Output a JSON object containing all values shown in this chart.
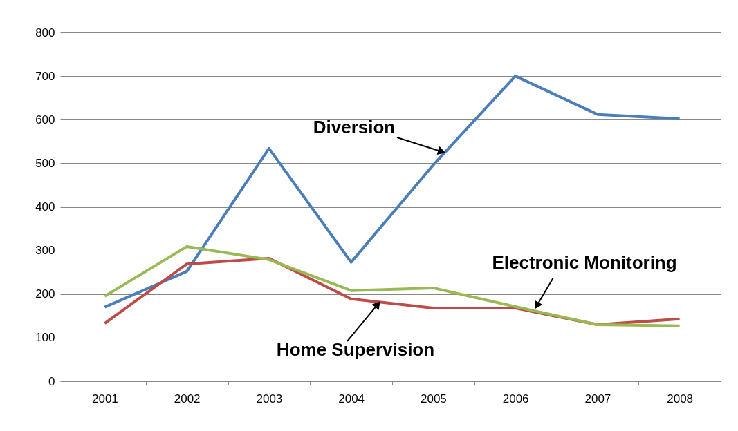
{
  "chart_data": {
    "type": "line",
    "categories": [
      "2001",
      "2002",
      "2003",
      "2004",
      "2005",
      "2006",
      "2007",
      "2008"
    ],
    "series": [
      {
        "name": "Diversion",
        "color": "#4a7ebb",
        "values": [
          170,
          252,
          534,
          273,
          496,
          700,
          612,
          602
        ]
      },
      {
        "name": "Home Supervision",
        "color": "#be4b48",
        "values": [
          133,
          269,
          282,
          189,
          168,
          168,
          130,
          143
        ]
      },
      {
        "name": "Electronic Monitoring",
        "color": "#98b954",
        "values": [
          195,
          309,
          279,
          208,
          214,
          171,
          130,
          127
        ]
      }
    ],
    "ylim": [
      0,
      800
    ],
    "yticks": [
      0,
      100,
      200,
      300,
      400,
      500,
      600,
      700,
      800
    ],
    "grid": "y",
    "legend": false,
    "marker": "none",
    "line_style": "solid"
  }
}
